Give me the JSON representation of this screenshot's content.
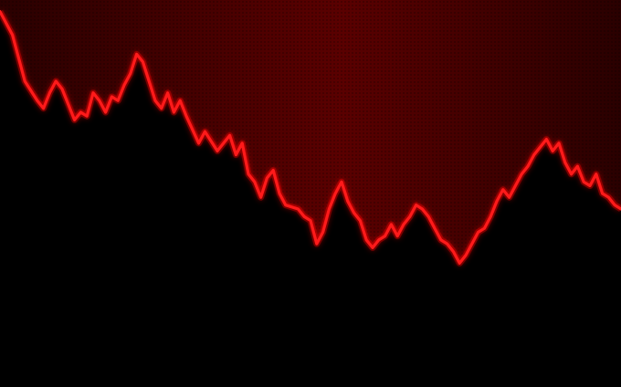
{
  "image": {
    "subject": "declining-price-line",
    "colors": {
      "line": "#ff1a1a",
      "glow": "#ff0000",
      "upper_bg": "#5a0000",
      "upper_bg_dark": "#2a0000",
      "lower_bg": "#000000"
    }
  },
  "chart_data": {
    "type": "line",
    "title": "",
    "xlabel": "",
    "ylabel": "",
    "grid": false,
    "legend": "none",
    "series": [
      {
        "x": [
          0,
          2,
          3,
          4,
          6,
          7,
          8,
          9,
          10,
          12,
          13,
          14,
          15,
          16,
          17,
          18,
          19,
          20,
          21,
          22,
          23,
          24,
          25,
          26,
          27,
          28,
          29,
          30,
          32,
          33,
          35,
          36,
          37,
          38,
          39,
          40,
          41,
          42,
          43,
          44,
          45,
          46,
          48,
          49,
          50,
          51,
          52,
          53,
          54,
          55,
          56,
          57,
          58,
          59,
          60,
          61,
          62,
          63,
          64,
          65,
          66,
          67,
          68,
          69,
          70,
          71,
          72,
          73,
          74,
          75,
          76,
          77,
          78,
          79,
          80,
          81,
          82,
          83,
          84,
          85,
          86,
          87,
          88,
          89,
          90,
          91,
          92,
          93,
          94,
          95,
          96,
          97,
          98,
          99,
          100
        ],
        "y": [
          97,
          91,
          85,
          79,
          74,
          72,
          76,
          79,
          77,
          69,
          71,
          70,
          76,
          74,
          71,
          75,
          74,
          78,
          81,
          86,
          84,
          79,
          74,
          72,
          76,
          71,
          74,
          70,
          63,
          66,
          61,
          63,
          65,
          60,
          63,
          55,
          53,
          49,
          54,
          56,
          50,
          47,
          46,
          44,
          43,
          37,
          40,
          46,
          50,
          53,
          48,
          45,
          43,
          38,
          36,
          38,
          39,
          42,
          39,
          42,
          44,
          47,
          46,
          44,
          41,
          38,
          37,
          35,
          32,
          34,
          37,
          40,
          41,
          44,
          48,
          51,
          49,
          52,
          55,
          57,
          60,
          62,
          64,
          61,
          63,
          58,
          55,
          57,
          53,
          52,
          55,
          50,
          49,
          47,
          46
        ]
      }
    ]
  }
}
